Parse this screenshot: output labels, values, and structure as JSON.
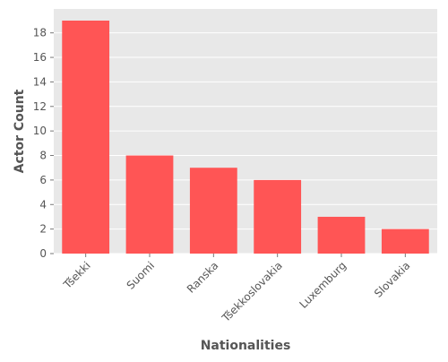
{
  "chart_data": {
    "type": "bar",
    "title": "",
    "xlabel": "Nationalities",
    "ylabel": "Actor Count",
    "categories": [
      "Tšekki",
      "Suomi",
      "Ranska",
      "Tšekkoslovakia",
      "Luxemburg",
      "Slovakia"
    ],
    "values": [
      19,
      8,
      7,
      6,
      3,
      2
    ],
    "ylim": [
      0,
      19.95
    ],
    "yticks": [
      0,
      2,
      4,
      6,
      8,
      10,
      12,
      14,
      16,
      18
    ],
    "grid": true,
    "legend": "none",
    "colors": {
      "bar": "#ff5555",
      "plot_background": "#e8e8e8",
      "grid": "#ffffff",
      "text": "#555555",
      "tick": "#777777"
    }
  }
}
